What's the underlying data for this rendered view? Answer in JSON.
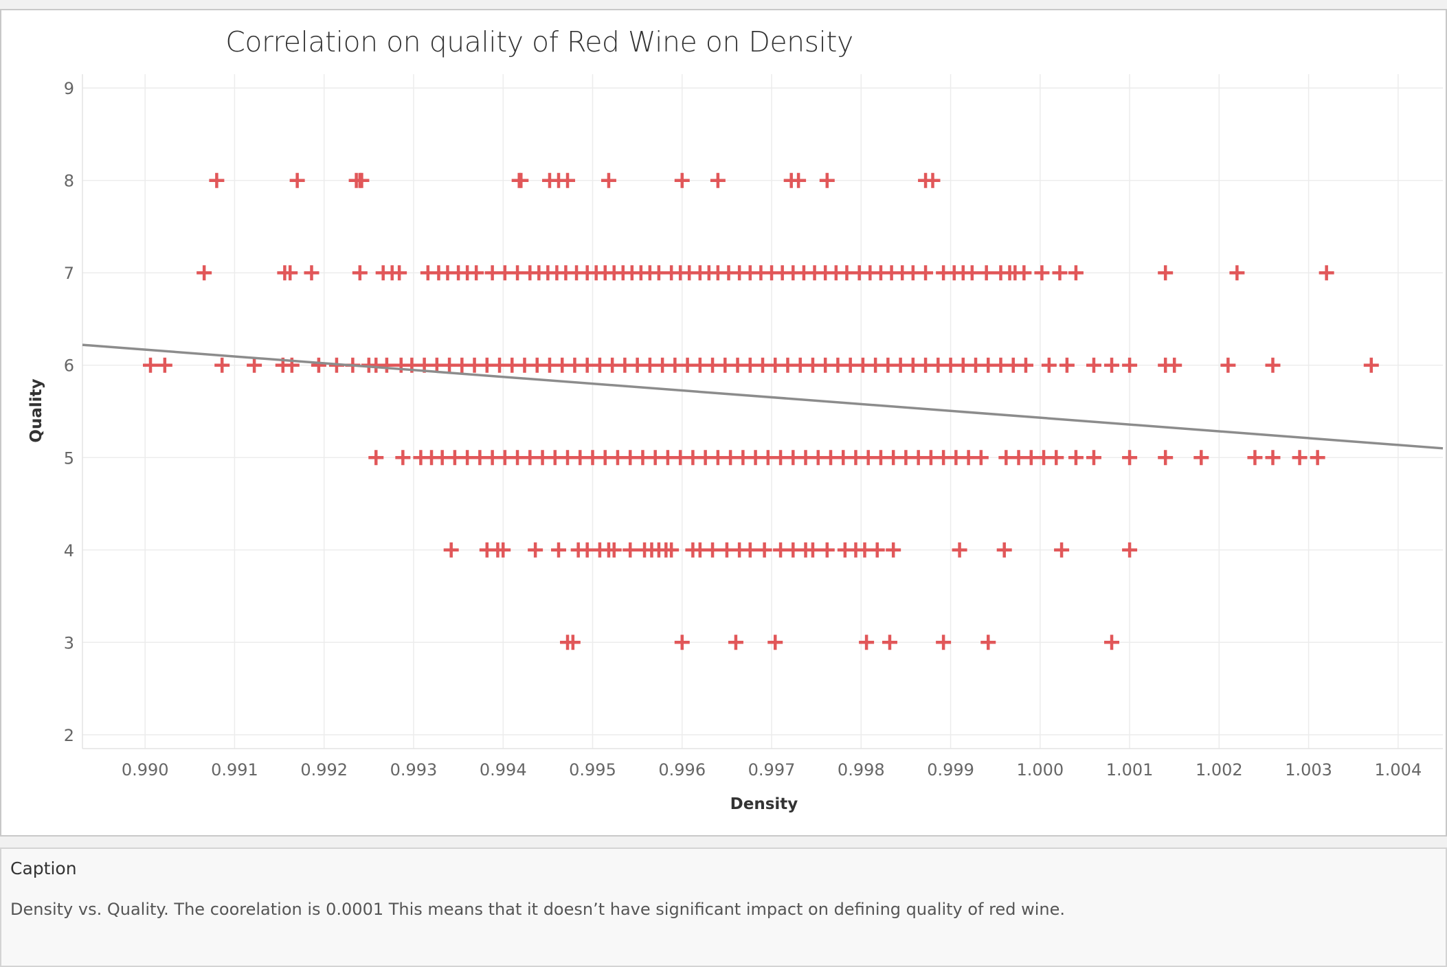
{
  "chart_data": {
    "type": "scatter",
    "title": "Correlation on quality of Red Wine on Density",
    "xlabel": "Density",
    "ylabel": "Quality",
    "xlim": [
      0.9893,
      1.0045
    ],
    "ylim": [
      1.85,
      9.15
    ],
    "x_ticks": [
      "0.990",
      "0.991",
      "0.992",
      "0.993",
      "0.994",
      "0.995",
      "0.996",
      "0.997",
      "0.998",
      "0.999",
      "1.000",
      "1.001",
      "1.002",
      "1.003",
      "1.004"
    ],
    "y_ticks": [
      "2",
      "3",
      "4",
      "5",
      "6",
      "7",
      "8",
      "9"
    ],
    "grid": true,
    "marker": "plus",
    "color": "#e15759",
    "trend_line": {
      "color": "#8c8c8c",
      "x": [
        0.9893,
        1.0045
      ],
      "y": [
        6.22,
        5.1
      ]
    },
    "series": [
      {
        "y": 8,
        "x": [
          0.9908,
          0.9917,
          0.99236,
          0.9924,
          0.99242,
          0.9942,
          0.99418,
          0.99452,
          0.99462,
          0.99472,
          0.99518,
          0.996,
          0.9964,
          0.99722,
          0.9973,
          0.99762,
          0.99872,
          0.9988
        ]
      },
      {
        "y": 7,
        "x": [
          0.99066,
          0.99156,
          0.99162,
          0.99186,
          0.9924,
          0.99266,
          0.99276,
          0.99284,
          0.99316,
          0.99328,
          0.99338,
          0.9935,
          0.9936,
          0.9937,
          0.99388,
          0.99402,
          0.99416,
          0.9943,
          0.9944,
          0.9945,
          0.9946,
          0.9947,
          0.99482,
          0.99494,
          0.99504,
          0.99514,
          0.99524,
          0.99534,
          0.99544,
          0.99554,
          0.99564,
          0.99574,
          0.99588,
          0.99598,
          0.99608,
          0.9962,
          0.9963,
          0.9964,
          0.99652,
          0.99664,
          0.99676,
          0.99688,
          0.997,
          0.99712,
          0.99724,
          0.99736,
          0.99748,
          0.9976,
          0.99772,
          0.99784,
          0.99798,
          0.9981,
          0.99822,
          0.99834,
          0.99846,
          0.99858,
          0.99872,
          0.99892,
          0.99904,
          0.99914,
          0.99924,
          0.9994,
          0.99956,
          0.99966,
          0.99972,
          0.99982,
          1.00002,
          1.00022,
          1.0004,
          1.0014,
          1.0022,
          1.0032
        ]
      },
      {
        "y": 6,
        "x": [
          0.99006,
          0.99022,
          0.99086,
          0.99122,
          0.99154,
          0.99164,
          0.99194,
          0.99214,
          0.99232,
          0.9925,
          0.99258,
          0.9927,
          0.99286,
          0.99298,
          0.99312,
          0.99326,
          0.9934,
          0.99354,
          0.99368,
          0.99382,
          0.99396,
          0.9941,
          0.99424,
          0.99438,
          0.99452,
          0.99466,
          0.9948,
          0.99494,
          0.99508,
          0.99522,
          0.99536,
          0.9955,
          0.99564,
          0.99578,
          0.99592,
          0.99606,
          0.9962,
          0.99634,
          0.99648,
          0.99662,
          0.99676,
          0.9969,
          0.99704,
          0.99718,
          0.99732,
          0.99746,
          0.9976,
          0.99774,
          0.99788,
          0.99802,
          0.99816,
          0.9983,
          0.99844,
          0.99858,
          0.99872,
          0.99886,
          0.999,
          0.99914,
          0.99928,
          0.99942,
          0.99956,
          0.9997,
          0.99984,
          1.0001,
          1.0003,
          1.0006,
          1.0008,
          1.001,
          1.0014,
          1.0015,
          1.0021,
          1.0026,
          1.0037
        ]
      },
      {
        "y": 5,
        "x": [
          0.99258,
          0.99288,
          0.99308,
          0.9932,
          0.99332,
          0.99346,
          0.9936,
          0.99374,
          0.99388,
          0.99402,
          0.99416,
          0.9943,
          0.99444,
          0.99458,
          0.99472,
          0.99486,
          0.995,
          0.99514,
          0.99528,
          0.99542,
          0.99556,
          0.9957,
          0.99584,
          0.99598,
          0.99612,
          0.99626,
          0.9964,
          0.99654,
          0.99668,
          0.99682,
          0.99696,
          0.9971,
          0.99724,
          0.99738,
          0.99752,
          0.99766,
          0.9978,
          0.99794,
          0.99808,
          0.99822,
          0.99836,
          0.9985,
          0.99864,
          0.99878,
          0.99892,
          0.99906,
          0.9992,
          0.99934,
          0.99962,
          0.99976,
          0.9999,
          1.00004,
          1.00018,
          1.0004,
          1.0006,
          1.001,
          1.0014,
          1.0018,
          1.0024,
          1.0026,
          1.0029,
          1.0031
        ]
      },
      {
        "y": 4,
        "x": [
          0.99342,
          0.99382,
          0.99394,
          0.994,
          0.99436,
          0.99462,
          0.99484,
          0.99494,
          0.99508,
          0.99518,
          0.99524,
          0.99542,
          0.99558,
          0.99566,
          0.99574,
          0.99582,
          0.99588,
          0.99612,
          0.9962,
          0.99634,
          0.9965,
          0.99664,
          0.99676,
          0.99692,
          0.9971,
          0.99724,
          0.99738,
          0.99746,
          0.99762,
          0.99782,
          0.99794,
          0.99804,
          0.99818,
          0.99836,
          0.9991,
          0.9996,
          1.00024,
          1.001
        ]
      },
      {
        "y": 3,
        "x": [
          0.99472,
          0.99478,
          0.996,
          0.9966,
          0.99704,
          0.99806,
          0.99832,
          0.99892,
          0.99942,
          1.0008
        ]
      }
    ]
  },
  "caption": {
    "title": "Caption",
    "text": "Density  vs. Quality. The coorelation is 0.0001 This means that it doesn’t have significant impact on defining quality of red wine."
  }
}
